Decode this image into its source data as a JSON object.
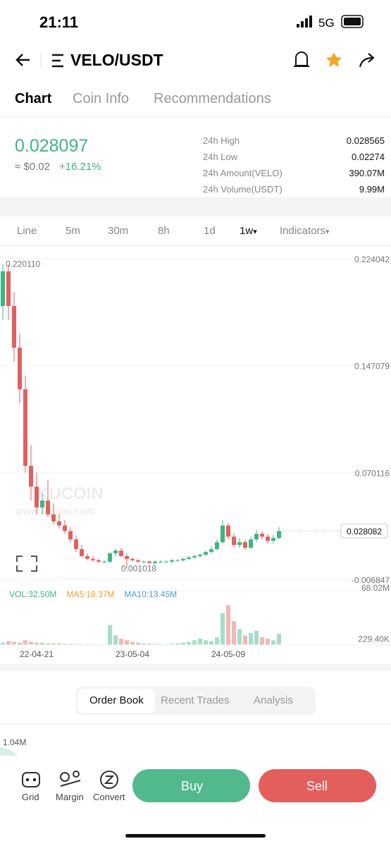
{
  "status": {
    "time": "21:11",
    "network": "5G"
  },
  "header": {
    "pair": "VELO/USDT"
  },
  "tabs": [
    "Chart",
    "Coin Info",
    "Recommendations"
  ],
  "price": {
    "last": "0.028097",
    "usd": "≈ $0.02",
    "change": "+16.21%"
  },
  "stats": [
    {
      "label": "24h High",
      "value": "0.028565"
    },
    {
      "label": "24h Low",
      "value": "0.02274"
    },
    {
      "label": "24h Amount(VELO)",
      "value": "390.07M"
    },
    {
      "label": "24h Volume(USDT)",
      "value": "9.99M"
    }
  ],
  "intervals": [
    "Line",
    "5m",
    "30m",
    "8h",
    "1d",
    "1w",
    "Indicators"
  ],
  "watermark": {
    "brand": "KUCOIN",
    "site": "www.kucoin.com"
  },
  "chart_data": {
    "type": "candlestick",
    "categories": [
      null,
      null,
      null,
      null,
      null,
      null,
      "22-04-21",
      null,
      null,
      null,
      null,
      null,
      null,
      null,
      null,
      null,
      null,
      null,
      null,
      null,
      null,
      null,
      null,
      "23-05-04",
      null,
      null,
      null,
      null,
      null,
      null,
      null,
      null,
      null,
      null,
      null,
      null,
      null,
      null,
      null,
      null,
      "24-05-09",
      null,
      null,
      null,
      null,
      null,
      null,
      null,
      null,
      null
    ],
    "open": [
      0.19,
      0.215,
      0.19,
      0.16,
      0.13,
      0.075,
      0.06,
      0.045,
      0.05,
      0.04,
      0.035,
      0.032,
      0.028,
      0.022,
      0.015,
      0.01,
      0.008,
      0.007,
      0.006,
      0.006,
      0.012,
      0.014,
      0.01,
      0.008,
      0.007,
      0.006,
      0.006,
      0.005,
      0.006,
      0.006,
      0.006,
      0.007,
      0.007,
      0.008,
      0.009,
      0.01,
      0.011,
      0.013,
      0.015,
      0.02,
      0.032,
      0.024,
      0.018,
      0.02,
      0.016,
      0.022,
      0.026,
      0.024,
      0.021,
      0.023
    ],
    "high": [
      0.22011,
      0.22,
      0.2,
      0.17,
      0.14,
      0.09,
      0.07,
      0.055,
      0.065,
      0.048,
      0.04,
      0.036,
      0.031,
      0.025,
      0.018,
      0.012,
      0.01,
      0.008,
      0.007,
      0.013,
      0.015,
      0.016,
      0.012,
      0.009,
      0.008,
      0.007,
      0.007,
      0.007,
      0.007,
      0.007,
      0.008,
      0.008,
      0.009,
      0.01,
      0.011,
      0.012,
      0.014,
      0.017,
      0.022,
      0.036,
      0.034,
      0.026,
      0.023,
      0.022,
      0.024,
      0.029,
      0.028,
      0.026,
      0.025,
      0.031
    ],
    "low": [
      0.18,
      0.18,
      0.15,
      0.12,
      0.07,
      0.05,
      0.04,
      0.04,
      0.038,
      0.033,
      0.03,
      0.026,
      0.02,
      0.013,
      0.009,
      0.007,
      0.006,
      0.005,
      0.005,
      0.005,
      0.01,
      0.009,
      0.001018,
      0.006,
      0.005,
      0.005,
      0.004,
      0.004,
      0.005,
      0.005,
      0.005,
      0.006,
      0.006,
      0.007,
      0.008,
      0.009,
      0.01,
      0.012,
      0.014,
      0.019,
      0.022,
      0.016,
      0.016,
      0.015,
      0.015,
      0.02,
      0.022,
      0.019,
      0.019,
      0.022
    ],
    "close": [
      0.215,
      0.19,
      0.16,
      0.13,
      0.075,
      0.06,
      0.045,
      0.05,
      0.04,
      0.035,
      0.032,
      0.028,
      0.022,
      0.015,
      0.01,
      0.008,
      0.007,
      0.006,
      0.006,
      0.012,
      0.014,
      0.01,
      0.008,
      0.007,
      0.006,
      0.006,
      0.005,
      0.006,
      0.006,
      0.006,
      0.007,
      0.007,
      0.008,
      0.009,
      0.01,
      0.011,
      0.013,
      0.015,
      0.02,
      0.032,
      0.024,
      0.018,
      0.02,
      0.016,
      0.022,
      0.026,
      0.024,
      0.021,
      0.023,
      0.028
    ],
    "up_color": "#3fb483",
    "down_color": "#e0605f",
    "ylim": [
      -0.006847,
      0.224042
    ],
    "yticks": [
      0.224042,
      0.147079,
      0.070116,
      -0.006847
    ],
    "max_label": {
      "value": 0.22011,
      "label": "0.220110"
    },
    "min_label": 0.001018,
    "last_price": 0.028082,
    "volume": [
      3,
      5,
      4,
      3,
      6,
      4,
      3,
      3,
      2,
      2,
      2,
      1.5,
      1.5,
      1.2,
      1,
      1,
      1,
      0.8,
      0.8,
      25,
      12,
      8,
      6,
      4,
      3,
      2,
      1.5,
      1.5,
      1.2,
      1,
      1.5,
      2,
      3,
      4,
      6,
      8,
      6,
      5,
      10,
      40,
      50,
      30,
      20,
      12,
      15,
      18,
      10,
      8,
      6,
      14
    ],
    "vol_ylim": [
      0,
      68.02
    ],
    "vol_yticks": [
      {
        "value": 68.02,
        "label": "68.02M"
      },
      {
        "value": 0.2294,
        "label": "229.40K"
      }
    ],
    "vol_legend": [
      {
        "text": "VOL:32.50M",
        "color": "#3fb483"
      },
      {
        "text": "MA5:18.37M",
        "color": "#f0a030"
      },
      {
        "text": "MA10:13.45M",
        "color": "#4a9fd8"
      }
    ]
  },
  "book_tabs": [
    "Order Book",
    "Recent Trades",
    "Analysis"
  ],
  "depth_label": "1.04M",
  "nav": [
    "Grid",
    "Margin",
    "Convert"
  ],
  "actions": {
    "buy": "Buy",
    "sell": "Sell"
  }
}
